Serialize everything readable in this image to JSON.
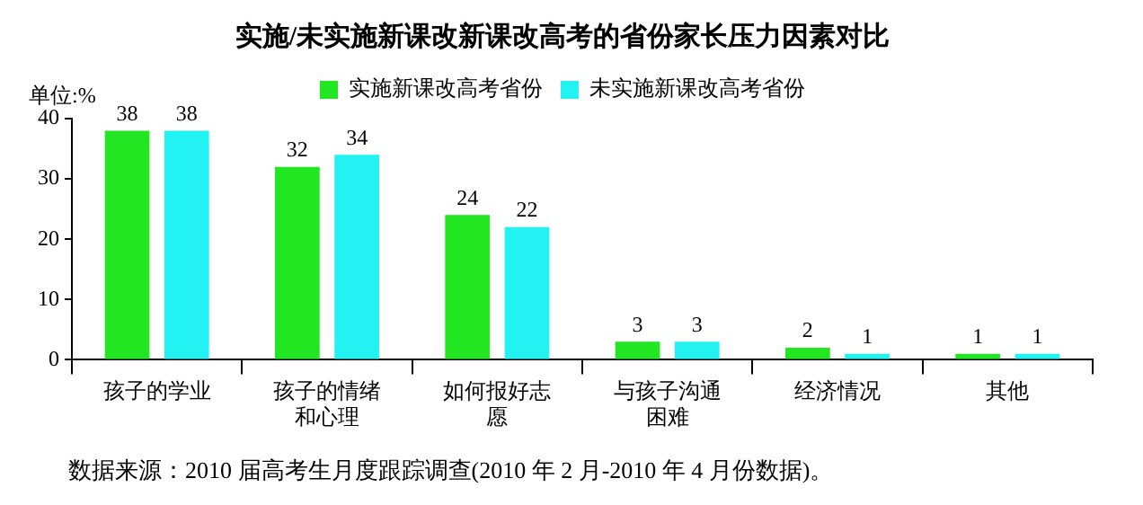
{
  "chart_data": {
    "type": "bar",
    "title": "实施/未实施新课改新课改高考的省份家长压力因素对比",
    "ylabel": "单位:%",
    "categories": [
      "孩子的学业",
      "孩子的情绪和心理",
      "如何报好志愿",
      "与孩子沟通困难",
      "经济情况",
      "其他"
    ],
    "series": [
      {
        "name": "实施新课改高考省份",
        "color": "#22e622",
        "values": [
          38,
          32,
          24,
          3,
          2,
          1
        ]
      },
      {
        "name": "未实施新课改高考省份",
        "color": "#22f2f2",
        "values": [
          38,
          34,
          22,
          3,
          1,
          1
        ]
      }
    ],
    "ylim": [
      0,
      40
    ],
    "yticks": [
      0,
      10,
      20,
      30,
      40
    ],
    "grid": false,
    "legend": "top",
    "data_labels": true,
    "annotations": [
      "数据来源：2010 届高考生月度跟踪调查(2010 年 2 月-2010 年 4 月份数据)。"
    ]
  }
}
